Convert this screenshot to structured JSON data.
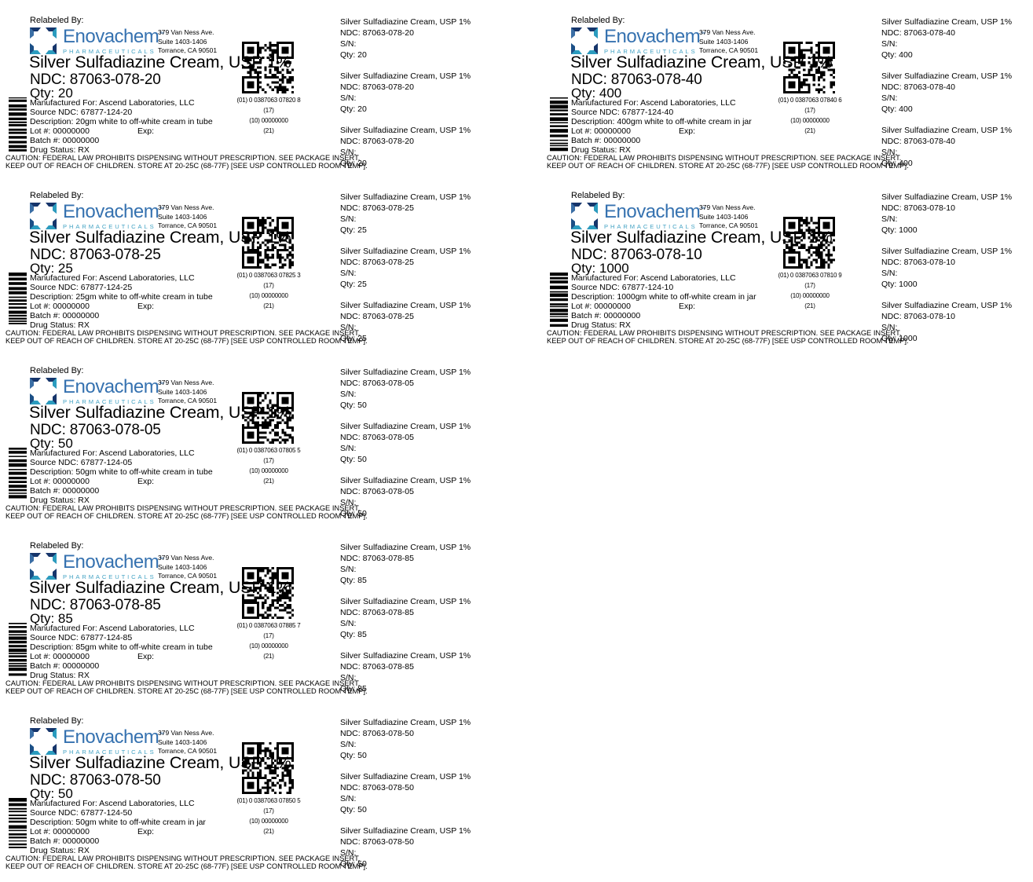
{
  "shared": {
    "relabeled_by": "Relabeled By:",
    "brand": "Enovachem",
    "brand_tm": "™",
    "brand_sub": "PHARMACEUTICALS",
    "address": [
      "379 Van Ness Ave.",
      "Suite 1403-1406",
      "Torrance, CA 90501"
    ],
    "product": "Silver Sulfadiazine Cream, USP 1%",
    "manufactured_for": "Manufactured For: Ascend Laboratories, LLC",
    "lot": "Lot #: 00000000",
    "exp": "Exp:",
    "batch": "Batch #: 00000000",
    "drug_status": "Drug Status: RX",
    "caution1": "CAUTION: FEDERAL LAW PROHIBITS DISPENSING WITHOUT PRESCRIPTION. SEE PACKAGE INSERT.",
    "caution2": "KEEP OUT OF REACH OF CHILDREN. STORE AT 20-25C (68-77F) [SEE USP CONTROLLED ROOM TEMP].",
    "sn_label": "S/N:",
    "gs1_17": "(17)",
    "gs1_10": "(10) 00000000",
    "gs1_21": "(21)",
    "colors": {
      "brand_blue": "#3672b0",
      "brand_teal": "#44a3c4",
      "logo_navy": "#16356b",
      "logo_steel": "#3a6ea5",
      "logo_teal": "#2b9cbf",
      "text": "#000000"
    }
  },
  "labels": [
    {
      "column": "left",
      "row": 0,
      "ndc": "NDC: 87063-078-20",
      "qty": "Qty: 20",
      "source_ndc": "Source NDC: 67877-124-20",
      "description": "Description: 20gm white to off-white cream in tube",
      "gs1_01": "(01) 0 0387063 07820 8"
    },
    {
      "column": "right",
      "row": 0,
      "ndc": "NDC: 87063-078-40",
      "qty": "Qty: 400",
      "source_ndc": "Source NDC: 67877-124-40",
      "description": "Description: 400gm white to off-white cream in jar",
      "gs1_01": "(01) 0 0387063 07840 6"
    },
    {
      "column": "left",
      "row": 1,
      "ndc": "NDC: 87063-078-25",
      "qty": "Qty: 25",
      "source_ndc": "Source NDC: 67877-124-25",
      "description": "Description: 25gm white to off-white cream in tube",
      "gs1_01": "(01) 0 0387063 07825 3"
    },
    {
      "column": "right",
      "row": 1,
      "ndc": "NDC: 87063-078-10",
      "qty": "Qty: 1000",
      "source_ndc": "Source NDC: 67877-124-10",
      "description": "Description: 1000gm white to off-white cream in jar",
      "gs1_01": "(01) 0 0387063 07810 9"
    },
    {
      "column": "left",
      "row": 2,
      "ndc": "NDC: 87063-078-05",
      "qty": "Qty: 50",
      "source_ndc": "Source NDC: 67877-124-05",
      "description": "Description: 50gm white to off-white cream in tube",
      "gs1_01": "(01) 0 0387063 07805 5"
    },
    {
      "column": "left",
      "row": 3,
      "ndc": "NDC: 87063-078-85",
      "qty": "Qty: 85",
      "source_ndc": "Source NDC: 67877-124-85",
      "description": "Description: 85gm white to off-white cream in tube",
      "gs1_01": "(01) 0 0387063 07885 7"
    },
    {
      "column": "left",
      "row": 4,
      "ndc": "NDC: 87063-078-50",
      "qty": "Qty: 50",
      "source_ndc": "Source NDC: 67877-124-50",
      "description": "Description: 50gm white to off-white cream in jar",
      "gs1_01": "(01) 0 0387063 07850 5"
    }
  ]
}
